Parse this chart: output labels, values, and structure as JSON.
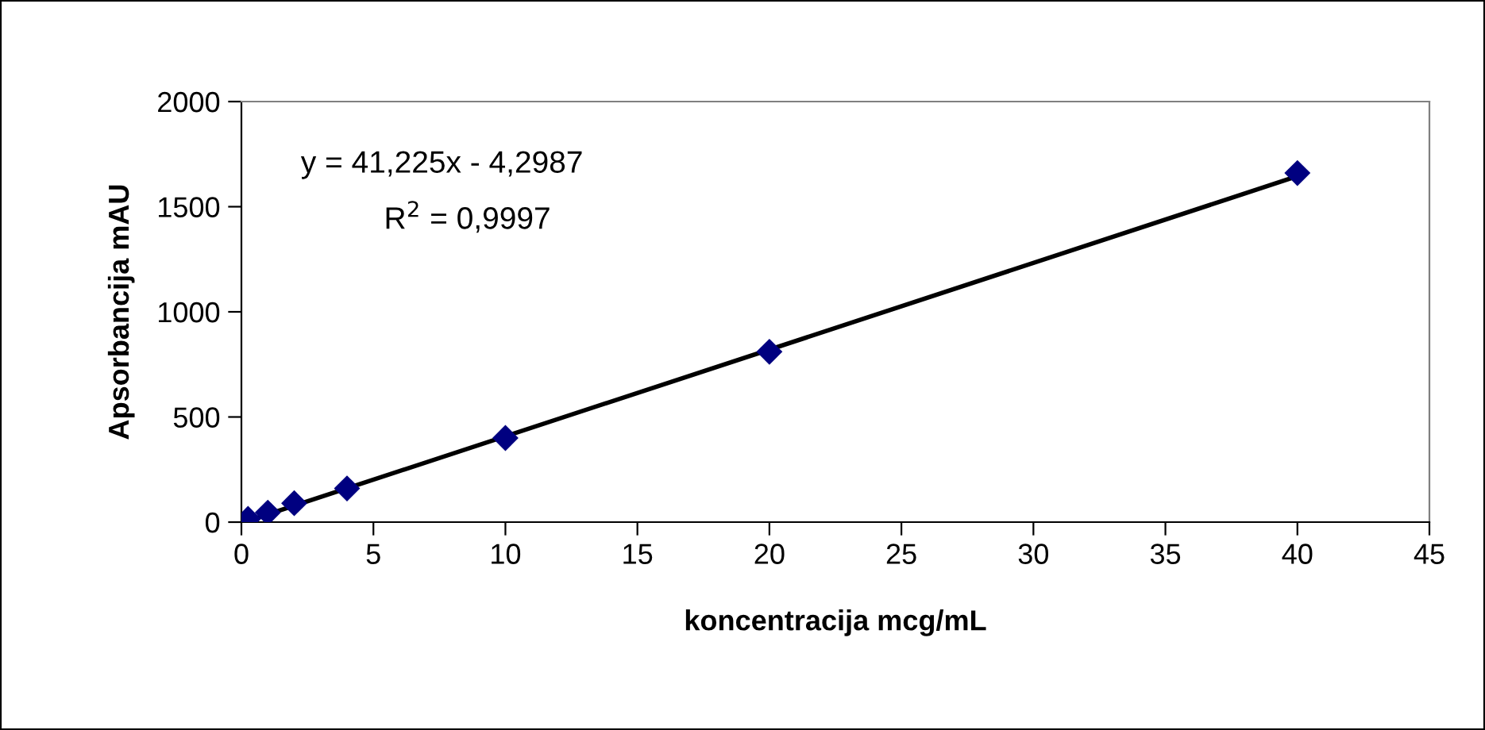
{
  "chart_data": {
    "type": "scatter",
    "xlabel": "koncentracija mcg/mL",
    "ylabel": "Apsorbancija mAU",
    "annotations": [
      "y = 41,225x - 4,2987",
      "R$^{2}$ = 0,9997"
    ],
    "series": [
      {
        "color": "#000080",
        "x": [
          0.25,
          1,
          2,
          4,
          10,
          20,
          40
        ],
        "values": [
          15,
          45,
          90,
          160,
          400,
          810,
          1660
        ],
        "marker": "diamond"
      },
      {
        "type": "line",
        "color": "#000000",
        "x": [
          0.25,
          40
        ],
        "values": [
          6,
          1645
        ],
        "marker": "none",
        "line_style": "solid"
      }
    ],
    "xlim": [
      0,
      45
    ],
    "xticks": [
      0,
      5,
      10,
      15,
      20,
      25,
      30,
      35,
      40,
      45
    ],
    "ylim": [
      0,
      2000
    ],
    "yticks": [
      0,
      500,
      1000,
      1500,
      2000
    ],
    "grid": false,
    "legend": false
  }
}
